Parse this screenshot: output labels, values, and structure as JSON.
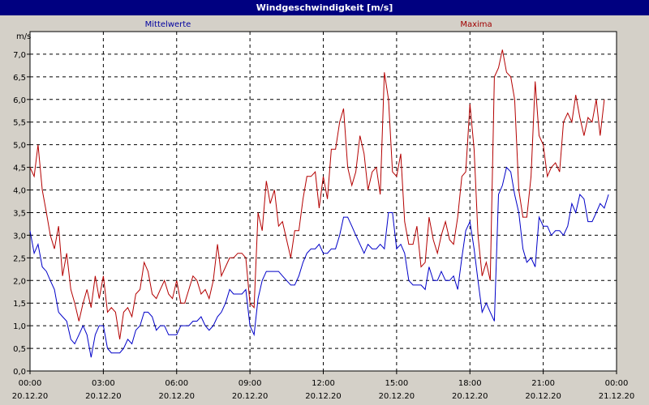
{
  "window": {
    "title": "Windgeschwindigkeit [m/s]"
  },
  "chart_data": {
    "type": "line",
    "title": "Windgeschwindigkeit [m/s]",
    "ylabel": "m/s",
    "xlabel": "",
    "ylim": [
      0,
      7.5
    ],
    "xlim_hours": [
      0,
      24
    ],
    "grid": true,
    "y_ticks": [
      "0,0",
      "0,5",
      "1,0",
      "1,5",
      "2,0",
      "2,5",
      "3,0",
      "3,5",
      "4,0",
      "4,5",
      "5,0",
      "5,5",
      "6,0",
      "6,5",
      "7,0"
    ],
    "x_ticks": [
      {
        "time": "00:00",
        "date": "20.12.20"
      },
      {
        "time": "03:00",
        "date": "20.12.20"
      },
      {
        "time": "06:00",
        "date": "20.12.20"
      },
      {
        "time": "09:00",
        "date": "20.12.20"
      },
      {
        "time": "12:00",
        "date": "20.12.20"
      },
      {
        "time": "15:00",
        "date": "20.12.20"
      },
      {
        "time": "18:00",
        "date": "20.12.20"
      },
      {
        "time": "21:00",
        "date": "20.12.20"
      },
      {
        "time": "00:00",
        "date": "21.12.20"
      }
    ],
    "series": [
      {
        "name": "Mittelwerte",
        "color": "#0000c8",
        "points": [
          [
            0,
            3.1
          ],
          [
            0.17,
            2.6
          ],
          [
            0.33,
            2.8
          ],
          [
            0.5,
            2.3
          ],
          [
            0.67,
            2.2
          ],
          [
            0.83,
            2.0
          ],
          [
            1.0,
            1.8
          ],
          [
            1.17,
            1.3
          ],
          [
            1.33,
            1.2
          ],
          [
            1.5,
            1.1
          ],
          [
            1.67,
            0.7
          ],
          [
            1.83,
            0.6
          ],
          [
            2.0,
            0.8
          ],
          [
            2.17,
            1.0
          ],
          [
            2.33,
            0.8
          ],
          [
            2.5,
            0.3
          ],
          [
            2.67,
            0.8
          ],
          [
            2.83,
            1.0
          ],
          [
            3.0,
            1.0
          ],
          [
            3.17,
            0.5
          ],
          [
            3.33,
            0.4
          ],
          [
            3.5,
            0.4
          ],
          [
            3.67,
            0.4
          ],
          [
            3.83,
            0.5
          ],
          [
            4.0,
            0.7
          ],
          [
            4.17,
            0.6
          ],
          [
            4.33,
            0.9
          ],
          [
            4.5,
            1.0
          ],
          [
            4.67,
            1.3
          ],
          [
            4.83,
            1.3
          ],
          [
            5.0,
            1.2
          ],
          [
            5.17,
            0.9
          ],
          [
            5.33,
            1.0
          ],
          [
            5.5,
            1.0
          ],
          [
            5.67,
            0.8
          ],
          [
            5.83,
            0.8
          ],
          [
            6.0,
            0.8
          ],
          [
            6.17,
            1.0
          ],
          [
            6.33,
            1.0
          ],
          [
            6.5,
            1.0
          ],
          [
            6.67,
            1.1
          ],
          [
            6.83,
            1.1
          ],
          [
            7.0,
            1.2
          ],
          [
            7.17,
            1.0
          ],
          [
            7.33,
            0.9
          ],
          [
            7.5,
            1.0
          ],
          [
            7.67,
            1.2
          ],
          [
            7.83,
            1.3
          ],
          [
            8.0,
            1.5
          ],
          [
            8.17,
            1.8
          ],
          [
            8.33,
            1.7
          ],
          [
            8.5,
            1.7
          ],
          [
            8.67,
            1.7
          ],
          [
            8.83,
            1.8
          ],
          [
            9.0,
            1.0
          ],
          [
            9.17,
            0.8
          ],
          [
            9.33,
            1.6
          ],
          [
            9.5,
            2.0
          ],
          [
            9.67,
            2.2
          ],
          [
            9.83,
            2.2
          ],
          [
            10.0,
            2.2
          ],
          [
            10.17,
            2.2
          ],
          [
            10.33,
            2.1
          ],
          [
            10.5,
            2.0
          ],
          [
            10.67,
            1.9
          ],
          [
            10.83,
            1.9
          ],
          [
            11.0,
            2.1
          ],
          [
            11.17,
            2.4
          ],
          [
            11.33,
            2.6
          ],
          [
            11.5,
            2.7
          ],
          [
            11.67,
            2.7
          ],
          [
            11.83,
            2.8
          ],
          [
            12.0,
            2.6
          ],
          [
            12.17,
            2.6
          ],
          [
            12.33,
            2.7
          ],
          [
            12.5,
            2.7
          ],
          [
            12.67,
            3.0
          ],
          [
            12.83,
            3.4
          ],
          [
            13.0,
            3.4
          ],
          [
            13.17,
            3.2
          ],
          [
            13.33,
            3.0
          ],
          [
            13.5,
            2.8
          ],
          [
            13.67,
            2.6
          ],
          [
            13.83,
            2.8
          ],
          [
            14.0,
            2.7
          ],
          [
            14.17,
            2.7
          ],
          [
            14.33,
            2.8
          ],
          [
            14.5,
            2.7
          ],
          [
            14.67,
            3.5
          ],
          [
            14.83,
            3.5
          ],
          [
            15.0,
            2.7
          ],
          [
            15.17,
            2.8
          ],
          [
            15.33,
            2.6
          ],
          [
            15.5,
            2.0
          ],
          [
            15.67,
            1.9
          ],
          [
            15.83,
            1.9
          ],
          [
            16.0,
            1.9
          ],
          [
            16.17,
            1.8
          ],
          [
            16.33,
            2.3
          ],
          [
            16.5,
            2.0
          ],
          [
            16.67,
            2.0
          ],
          [
            16.83,
            2.2
          ],
          [
            17.0,
            2.0
          ],
          [
            17.17,
            2.0
          ],
          [
            17.33,
            2.1
          ],
          [
            17.5,
            1.8
          ],
          [
            17.67,
            2.5
          ],
          [
            17.83,
            3.1
          ],
          [
            18.0,
            3.3
          ],
          [
            18.17,
            2.7
          ],
          [
            18.33,
            2.0
          ],
          [
            18.5,
            1.3
          ],
          [
            18.67,
            1.5
          ],
          [
            18.83,
            1.3
          ],
          [
            19.0,
            1.1
          ],
          [
            19.17,
            3.9
          ],
          [
            19.33,
            4.1
          ],
          [
            19.5,
            4.5
          ],
          [
            19.67,
            4.4
          ],
          [
            19.83,
            3.9
          ],
          [
            20.0,
            3.5
          ],
          [
            20.17,
            2.7
          ],
          [
            20.33,
            2.4
          ],
          [
            20.5,
            2.5
          ],
          [
            20.67,
            2.3
          ],
          [
            20.83,
            3.4
          ],
          [
            21.0,
            3.2
          ],
          [
            21.17,
            3.2
          ],
          [
            21.33,
            3.0
          ],
          [
            21.5,
            3.1
          ],
          [
            21.67,
            3.1
          ],
          [
            21.83,
            3.0
          ],
          [
            22.0,
            3.2
          ],
          [
            22.17,
            3.7
          ],
          [
            22.33,
            3.5
          ],
          [
            22.5,
            3.9
          ],
          [
            22.67,
            3.8
          ],
          [
            22.83,
            3.3
          ],
          [
            23.0,
            3.3
          ],
          [
            23.17,
            3.5
          ],
          [
            23.33,
            3.7
          ],
          [
            23.5,
            3.6
          ],
          [
            23.67,
            3.9
          ]
        ]
      },
      {
        "name": "Maxima",
        "color": "#b40000",
        "points": [
          [
            0,
            4.5
          ],
          [
            0.17,
            4.3
          ],
          [
            0.33,
            5.0
          ],
          [
            0.5,
            4.0
          ],
          [
            0.67,
            3.5
          ],
          [
            0.83,
            3.0
          ],
          [
            1.0,
            2.7
          ],
          [
            1.17,
            3.2
          ],
          [
            1.33,
            2.1
          ],
          [
            1.5,
            2.6
          ],
          [
            1.67,
            1.8
          ],
          [
            1.83,
            1.5
          ],
          [
            2.0,
            1.1
          ],
          [
            2.17,
            1.5
          ],
          [
            2.33,
            1.8
          ],
          [
            2.5,
            1.4
          ],
          [
            2.67,
            2.1
          ],
          [
            2.83,
            1.6
          ],
          [
            3.0,
            2.1
          ],
          [
            3.17,
            1.3
          ],
          [
            3.33,
            1.4
          ],
          [
            3.5,
            1.3
          ],
          [
            3.67,
            0.7
          ],
          [
            3.83,
            1.3
          ],
          [
            4.0,
            1.4
          ],
          [
            4.17,
            1.2
          ],
          [
            4.33,
            1.7
          ],
          [
            4.5,
            1.8
          ],
          [
            4.67,
            2.4
          ],
          [
            4.83,
            2.2
          ],
          [
            5.0,
            1.7
          ],
          [
            5.17,
            1.6
          ],
          [
            5.33,
            1.8
          ],
          [
            5.5,
            2.0
          ],
          [
            5.67,
            1.7
          ],
          [
            5.83,
            1.6
          ],
          [
            6.0,
            2.0
          ],
          [
            6.17,
            1.5
          ],
          [
            6.33,
            1.5
          ],
          [
            6.5,
            1.8
          ],
          [
            6.67,
            2.1
          ],
          [
            6.83,
            2.0
          ],
          [
            7.0,
            1.7
          ],
          [
            7.17,
            1.8
          ],
          [
            7.33,
            1.6
          ],
          [
            7.5,
            2.0
          ],
          [
            7.67,
            2.8
          ],
          [
            7.83,
            2.1
          ],
          [
            8.0,
            2.3
          ],
          [
            8.17,
            2.5
          ],
          [
            8.33,
            2.5
          ],
          [
            8.5,
            2.6
          ],
          [
            8.67,
            2.6
          ],
          [
            8.83,
            2.5
          ],
          [
            9.0,
            1.5
          ],
          [
            9.17,
            1.4
          ],
          [
            9.33,
            3.5
          ],
          [
            9.5,
            3.1
          ],
          [
            9.67,
            4.2
          ],
          [
            9.83,
            3.7
          ],
          [
            10.0,
            4.0
          ],
          [
            10.17,
            3.2
          ],
          [
            10.33,
            3.3
          ],
          [
            10.5,
            2.9
          ],
          [
            10.67,
            2.5
          ],
          [
            10.83,
            3.1
          ],
          [
            11.0,
            3.1
          ],
          [
            11.17,
            3.8
          ],
          [
            11.33,
            4.3
          ],
          [
            11.5,
            4.3
          ],
          [
            11.67,
            4.4
          ],
          [
            11.83,
            3.6
          ],
          [
            12.0,
            4.3
          ],
          [
            12.17,
            3.8
          ],
          [
            12.33,
            4.9
          ],
          [
            12.5,
            4.9
          ],
          [
            12.67,
            5.5
          ],
          [
            12.83,
            5.8
          ],
          [
            13.0,
            4.5
          ],
          [
            13.17,
            4.1
          ],
          [
            13.33,
            4.4
          ],
          [
            13.5,
            5.2
          ],
          [
            13.67,
            4.8
          ],
          [
            13.83,
            4.0
          ],
          [
            14.0,
            4.4
          ],
          [
            14.17,
            4.5
          ],
          [
            14.33,
            3.9
          ],
          [
            14.5,
            6.6
          ],
          [
            14.67,
            6.0
          ],
          [
            14.83,
            4.4
          ],
          [
            15.0,
            4.3
          ],
          [
            15.17,
            4.8
          ],
          [
            15.33,
            3.3
          ],
          [
            15.5,
            2.8
          ],
          [
            15.67,
            2.8
          ],
          [
            15.83,
            3.2
          ],
          [
            16.0,
            2.3
          ],
          [
            16.17,
            2.4
          ],
          [
            16.33,
            3.4
          ],
          [
            16.5,
            2.9
          ],
          [
            16.67,
            2.6
          ],
          [
            16.83,
            3.0
          ],
          [
            17.0,
            3.3
          ],
          [
            17.17,
            2.9
          ],
          [
            17.33,
            2.8
          ],
          [
            17.5,
            3.4
          ],
          [
            17.67,
            4.3
          ],
          [
            17.83,
            4.4
          ],
          [
            18.0,
            5.9
          ],
          [
            18.17,
            4.9
          ],
          [
            18.33,
            3.0
          ],
          [
            18.5,
            2.1
          ],
          [
            18.67,
            2.4
          ],
          [
            18.83,
            2.0
          ],
          [
            19.0,
            6.5
          ],
          [
            19.17,
            6.7
          ],
          [
            19.33,
            7.1
          ],
          [
            19.5,
            6.6
          ],
          [
            19.67,
            6.5
          ],
          [
            19.83,
            6.0
          ],
          [
            20.0,
            4.0
          ],
          [
            20.17,
            3.4
          ],
          [
            20.33,
            3.4
          ],
          [
            20.5,
            4.3
          ],
          [
            20.67,
            6.4
          ],
          [
            20.83,
            5.2
          ],
          [
            21.0,
            5.0
          ],
          [
            21.17,
            4.3
          ],
          [
            21.33,
            4.5
          ],
          [
            21.5,
            4.6
          ],
          [
            21.67,
            4.4
          ],
          [
            21.83,
            5.5
          ],
          [
            22.0,
            5.7
          ],
          [
            22.17,
            5.5
          ],
          [
            22.33,
            6.1
          ],
          [
            22.5,
            5.6
          ],
          [
            22.67,
            5.2
          ],
          [
            22.83,
            5.6
          ],
          [
            23.0,
            5.5
          ],
          [
            23.17,
            6.0
          ],
          [
            23.33,
            5.2
          ],
          [
            23.5,
            6.0
          ]
        ]
      }
    ]
  }
}
